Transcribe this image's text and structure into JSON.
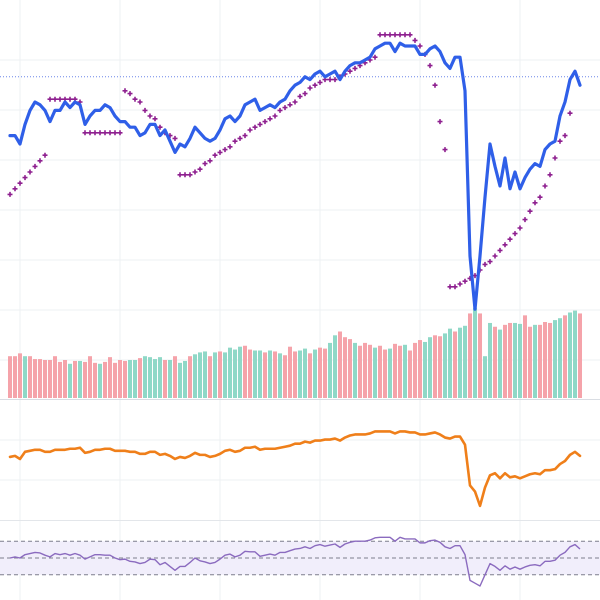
{
  "chart_data": [
    {
      "type": "line",
      "panel": "price",
      "title": "",
      "xlabel": "",
      "ylabel": "",
      "grid": true,
      "ylim": [
        0,
        100
      ],
      "reference_level": 84,
      "series": [
        {
          "role": "price",
          "color": "#2f5fe8",
          "values": [
            63,
            63,
            60,
            67,
            72,
            75,
            74,
            72,
            68,
            72,
            72,
            75,
            73,
            75,
            74,
            67,
            70,
            72,
            72,
            74,
            73,
            70,
            68,
            68,
            66,
            66,
            63,
            64,
            67,
            67,
            63,
            65,
            61,
            57,
            60,
            59,
            62,
            66,
            64,
            62,
            61,
            62,
            65,
            69,
            70,
            68,
            70,
            74,
            75,
            76,
            72,
            73,
            74,
            73,
            75,
            76,
            79,
            81,
            82,
            84,
            83,
            85,
            86,
            84,
            85,
            86,
            83,
            86,
            88,
            89,
            89,
            90,
            91,
            94,
            95,
            96,
            96,
            93,
            96,
            95,
            95,
            95,
            92,
            92,
            94,
            95,
            93,
            89,
            87,
            91,
            91,
            79,
            20,
            1,
            20,
            41,
            60,
            52,
            45,
            55,
            44,
            50,
            44,
            48,
            51,
            53,
            52,
            58,
            60,
            61,
            70,
            75,
            83,
            86,
            81
          ]
        },
        {
          "role": "psar",
          "color": "#8e1f8f",
          "values": [
            42,
            44,
            46,
            48,
            50,
            52,
            54,
            56,
            76,
            76,
            76,
            76,
            76,
            76,
            75,
            64,
            64,
            64,
            64,
            64,
            64,
            64,
            64,
            79,
            78,
            76,
            75,
            72,
            70,
            69,
            66,
            64,
            63,
            62,
            49,
            49,
            49,
            50,
            51,
            53,
            54,
            56,
            57,
            58,
            59,
            61,
            62,
            63,
            65,
            66,
            67,
            68,
            69,
            70,
            72,
            73,
            74,
            75,
            77,
            78,
            80,
            81,
            82,
            83,
            83,
            83,
            84,
            85,
            86,
            87,
            88,
            89,
            90,
            91,
            99,
            99,
            99,
            99,
            99,
            99,
            99,
            97,
            95,
            92,
            88,
            81,
            68,
            58,
            9,
            9,
            10,
            11,
            12,
            13,
            15,
            17,
            18,
            20,
            22,
            24,
            26,
            28,
            30,
            33,
            36,
            39,
            41,
            45,
            49,
            55,
            61,
            63,
            71
          ]
        },
        {
          "role": "volume",
          "color_up": "#8fd8c7",
          "color_down": "#f5a3aa",
          "values": [
            44,
            44,
            47,
            44,
            44,
            41,
            41,
            40,
            40,
            44,
            38,
            40,
            36,
            39,
            39,
            38,
            44,
            37,
            36,
            38,
            43,
            37,
            40,
            39,
            40,
            40,
            42,
            44,
            43,
            41,
            43,
            40,
            40,
            44,
            37,
            39,
            44,
            46,
            48,
            49,
            44,
            48,
            49,
            48,
            53,
            51,
            54,
            55,
            51,
            50,
            50,
            48,
            50,
            49,
            47,
            45,
            54,
            49,
            50,
            52,
            47,
            51,
            53,
            52,
            58,
            66,
            70,
            64,
            62,
            58,
            55,
            58,
            56,
            53,
            55,
            51,
            52,
            57,
            55,
            56,
            50,
            58,
            61,
            59,
            64,
            66,
            65,
            68,
            73,
            70,
            74,
            76,
            89,
            95,
            89,
            44,
            79,
            75,
            72,
            77,
            79,
            79,
            78,
            87,
            75,
            77,
            77,
            80,
            79,
            82,
            84,
            87,
            90,
            92,
            89
          ],
          "up": [
            false,
            false,
            false,
            true,
            false,
            false,
            false,
            false,
            false,
            false,
            false,
            false,
            true,
            false,
            true,
            false,
            false,
            false,
            true,
            false,
            false,
            false,
            false,
            false,
            true,
            true,
            false,
            true,
            true,
            true,
            true,
            false,
            true,
            false,
            true,
            true,
            false,
            true,
            true,
            true,
            false,
            true,
            false,
            true,
            true,
            true,
            true,
            false,
            false,
            true,
            true,
            false,
            true,
            false,
            true,
            false,
            false,
            false,
            true,
            true,
            false,
            true,
            false,
            false,
            true,
            true,
            false,
            false,
            false,
            true,
            false,
            false,
            false,
            true,
            false,
            false,
            true,
            false,
            false,
            true,
            false,
            false,
            false,
            true,
            true,
            false,
            false,
            true,
            true,
            false,
            true,
            true,
            false,
            true,
            false,
            true,
            true,
            false,
            true,
            false,
            false,
            true,
            true,
            false,
            false,
            true,
            false,
            false,
            false,
            true,
            true,
            false,
            true,
            true,
            false
          ]
        }
      ]
    },
    {
      "type": "line",
      "panel": "indicator",
      "title": "",
      "xlabel": "",
      "ylabel": "",
      "grid": true,
      "ylim": [
        0,
        100
      ],
      "series": [
        {
          "color": "#ef7f1a",
          "values": [
            54,
            55,
            52,
            59,
            60,
            61,
            61,
            59,
            59,
            61,
            61,
            61,
            62,
            62,
            63,
            58,
            59,
            61,
            61,
            62,
            62,
            60,
            60,
            60,
            59,
            59,
            57,
            57,
            59,
            59,
            56,
            57,
            55,
            52,
            54,
            53,
            55,
            58,
            56,
            56,
            54,
            55,
            57,
            60,
            61,
            59,
            60,
            63,
            63,
            64,
            61,
            62,
            62,
            62,
            63,
            64,
            65,
            67,
            67,
            69,
            68,
            70,
            70,
            71,
            71,
            72,
            70,
            73,
            75,
            76,
            76,
            76,
            77,
            79,
            79,
            79,
            79,
            77,
            79,
            79,
            78,
            78,
            76,
            76,
            77,
            78,
            76,
            73,
            72,
            74,
            74,
            66,
            26,
            20,
            6,
            24,
            36,
            38,
            33,
            38,
            34,
            35,
            33,
            35,
            37,
            38,
            37,
            41,
            41,
            42,
            47,
            50,
            56,
            59,
            55
          ]
        }
      ]
    },
    {
      "type": "line",
      "panel": "oscillator",
      "title": "",
      "xlabel": "",
      "ylabel": "",
      "grid": true,
      "ylim": [
        0,
        100
      ],
      "band": [
        20,
        80
      ],
      "midline": 50,
      "series": [
        {
          "color": "#8b6bbf",
          "values": [
            50,
            52,
            50,
            56,
            58,
            60,
            59,
            55,
            52,
            58,
            56,
            58,
            55,
            58,
            55,
            48,
            52,
            56,
            56,
            55,
            55,
            50,
            47,
            48,
            44,
            43,
            40,
            42,
            48,
            47,
            38,
            42,
            35,
            28,
            35,
            35,
            42,
            50,
            45,
            43,
            40,
            42,
            48,
            55,
            57,
            52,
            55,
            62,
            61,
            61,
            53,
            55,
            57,
            55,
            60,
            60,
            63,
            66,
            67,
            70,
            67,
            72,
            74,
            71,
            73,
            75,
            69,
            75,
            78,
            80,
            80,
            80,
            82,
            86,
            87,
            87,
            87,
            80,
            87,
            84,
            84,
            84,
            77,
            77,
            81,
            82,
            78,
            70,
            67,
            72,
            72,
            56,
            10,
            5,
            0,
            20,
            40,
            35,
            28,
            36,
            30,
            34,
            30,
            34,
            37,
            38,
            36,
            44,
            44,
            46,
            55,
            60,
            70,
            74,
            66
          ]
        }
      ]
    }
  ]
}
